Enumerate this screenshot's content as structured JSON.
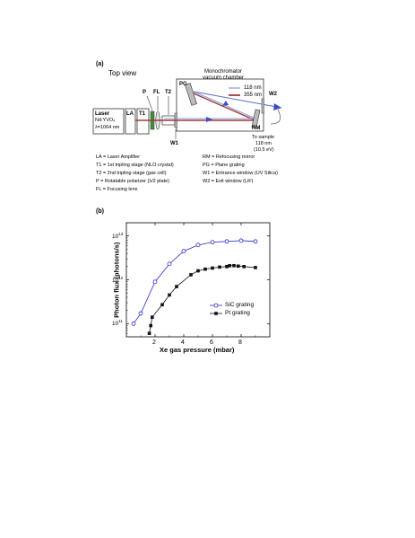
{
  "panel_a": {
    "label": "(a)",
    "top_view": "Top view",
    "monochromator_line1": "Monochromator",
    "monochromator_line2": "vacuum chamber",
    "legend": [
      {
        "label": "118 nm",
        "color": "#8a9ad6"
      },
      {
        "label": "355 nm",
        "color": "#a03a3a"
      }
    ],
    "laser_line1": "Laser",
    "laser_line2": "Nd:YVO₄",
    "laser_line3": "λ=1064 nm",
    "components": {
      "la": "LA",
      "t1": "T1",
      "p": "P",
      "fl": "FL",
      "t2": "T2",
      "pg": "PG",
      "rm": "RM",
      "w1": "W1",
      "w2": "W2"
    },
    "to_sample_line1": "To sample",
    "to_sample_line2": "118 nm",
    "to_sample_line3": "(10.5 eV)",
    "definitions_left": [
      "LA = Laser Amplifier",
      "T1 = 1st tripling stage (NLO crystal)",
      "T2 = 2nd tripling stage (gas cell)",
      "P  = Rotatable polarizer (λ/2 plate)",
      "FL = Focusing lens"
    ],
    "definitions_right": [
      "RM = Refocusing mirror",
      "PG = Plane grating",
      "W1 = Entrance window (UV Silica)",
      "W2 = Exit window (LiF)"
    ]
  },
  "panel_b_label": "(b)",
  "chart_data": {
    "type": "scatter",
    "xlabel": "Xe gas pressure (mbar)",
    "ylabel": "Photon flux (photons/s)",
    "xlim": [
      0,
      10
    ],
    "ylim": [
      50000000000,
      20000000000000
    ],
    "log_y": true,
    "x_ticks": [
      2,
      4,
      6,
      8
    ],
    "y_ticks": [
      {
        "value": 100000000000,
        "label": "10",
        "exp": "11"
      },
      {
        "value": 1000000000000,
        "label": "10",
        "exp": "12"
      },
      {
        "value": 10000000000000,
        "label": "10",
        "exp": "13"
      }
    ],
    "legend_placement": "bottom-right",
    "series": [
      {
        "name": "SiC grating",
        "marker": "open-circle",
        "color": "#2a2ad0",
        "x": [
          0.5,
          1.0,
          2.0,
          3.0,
          4.0,
          5.0,
          6.0,
          7.0,
          8.0,
          9.0
        ],
        "y": [
          100000000000,
          170000000000,
          900000000000,
          2300000000000,
          4500000000000,
          6200000000000,
          7200000000000,
          7500000000000,
          7800000000000,
          7500000000000
        ]
      },
      {
        "name": "Pt grating",
        "marker": "filled-square",
        "color": "#111111",
        "x": [
          1.6,
          1.7,
          1.8,
          2.5,
          3.0,
          3.5,
          4.5,
          5.0,
          5.5,
          6.0,
          6.5,
          7.0,
          7.2,
          7.5,
          7.8,
          8.2,
          9.0
        ],
        "y": [
          60000000000,
          90000000000,
          140000000000,
          270000000000,
          450000000000,
          700000000000,
          1300000000000,
          1600000000000,
          1750000000000,
          1850000000000,
          1950000000000,
          2000000000000,
          2100000000000,
          2100000000000,
          2050000000000,
          2000000000000,
          1900000000000
        ]
      }
    ]
  }
}
